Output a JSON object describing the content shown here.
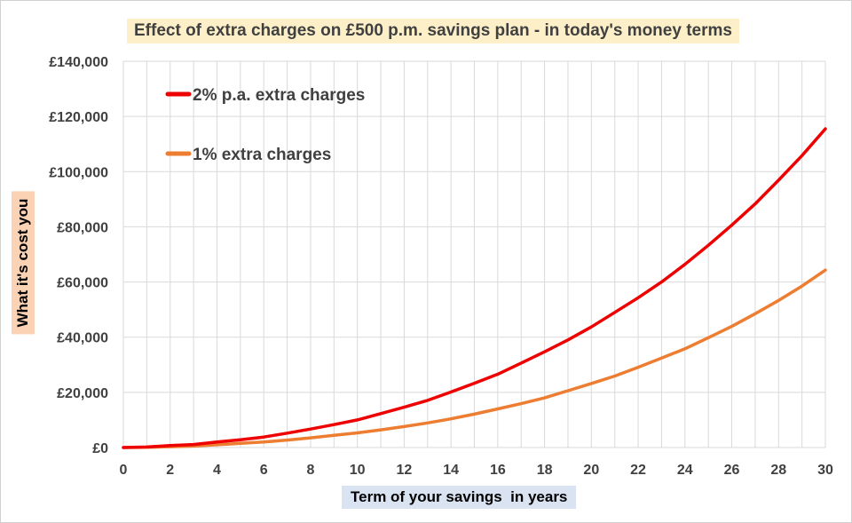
{
  "chart_data": {
    "type": "line",
    "title": "Effect of extra charges on £500 p.m. savings plan - in today's money terms",
    "xlabel": "Term of your savings  in years",
    "ylabel": "What it's cost you",
    "xlim": [
      0,
      30
    ],
    "ylim": [
      0,
      140000
    ],
    "x_ticks": [
      0,
      2,
      4,
      6,
      8,
      10,
      12,
      14,
      16,
      18,
      20,
      22,
      24,
      26,
      28,
      30
    ],
    "y_ticks": [
      0,
      20000,
      40000,
      60000,
      80000,
      100000,
      120000,
      140000
    ],
    "y_tick_labels": [
      "£0",
      "£20,000",
      "£40,000",
      "£60,000",
      "£80,000",
      "£100,000",
      "£120,000",
      "£140,000"
    ],
    "grid": true,
    "legend_position": "top-left",
    "x": [
      0,
      1,
      2,
      3,
      4,
      5,
      6,
      7,
      8,
      9,
      10,
      11,
      12,
      13,
      14,
      15,
      16,
      17,
      18,
      19,
      20,
      21,
      22,
      23,
      24,
      25,
      26,
      27,
      28,
      29,
      30
    ],
    "series": [
      {
        "name": "2% p.a. extra charges",
        "color": "#ee0000",
        "values": [
          0,
          200,
          700,
          1100,
          2000,
          2800,
          3800,
          5200,
          6700,
          8300,
          10000,
          12300,
          14600,
          17100,
          20100,
          23300,
          26600,
          30600,
          34700,
          39000,
          43700,
          49000,
          54300,
          60000,
          66400,
          73300,
          80600,
          88300,
          96900,
          105800,
          115500
        ]
      },
      {
        "name": "1% extra charges",
        "color": "#ed7d31",
        "values": [
          0,
          100,
          300,
          500,
          1000,
          1500,
          2000,
          2700,
          3500,
          4400,
          5300,
          6400,
          7600,
          8900,
          10400,
          12100,
          14000,
          15900,
          18000,
          20600,
          23200,
          25900,
          29100,
          32400,
          35800,
          39800,
          43900,
          48500,
          53300,
          58500,
          64300
        ]
      }
    ]
  }
}
